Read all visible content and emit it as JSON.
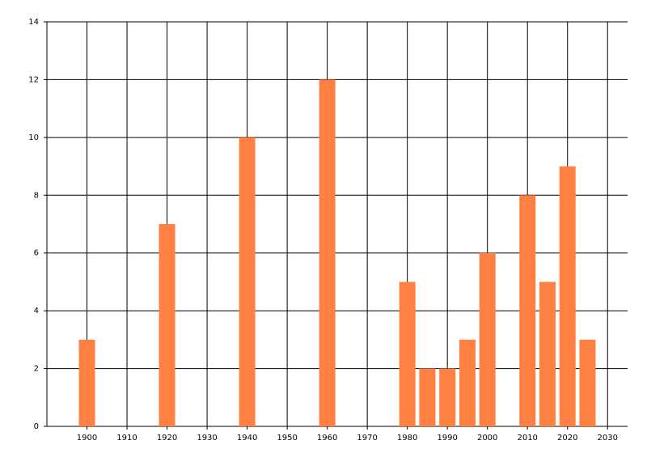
{
  "chart_data": {
    "type": "bar",
    "x": [
      1900,
      1920,
      1940,
      1960,
      1980,
      1985,
      1990,
      1995,
      2000,
      2010,
      2015,
      2020,
      2025
    ],
    "values": [
      3,
      7,
      10,
      12,
      5,
      2,
      2,
      3,
      6,
      8,
      5,
      9,
      3
    ],
    "color": "#ff8040",
    "xlim": [
      1890,
      2035
    ],
    "xticks": [
      1900,
      1910,
      1920,
      1930,
      1940,
      1950,
      1960,
      1970,
      1980,
      1990,
      2000,
      2010,
      2020,
      2030
    ],
    "ylim": [
      0,
      14
    ],
    "yticks": [
      0,
      2,
      4,
      6,
      8,
      10,
      12,
      14
    ],
    "grid": true
  }
}
